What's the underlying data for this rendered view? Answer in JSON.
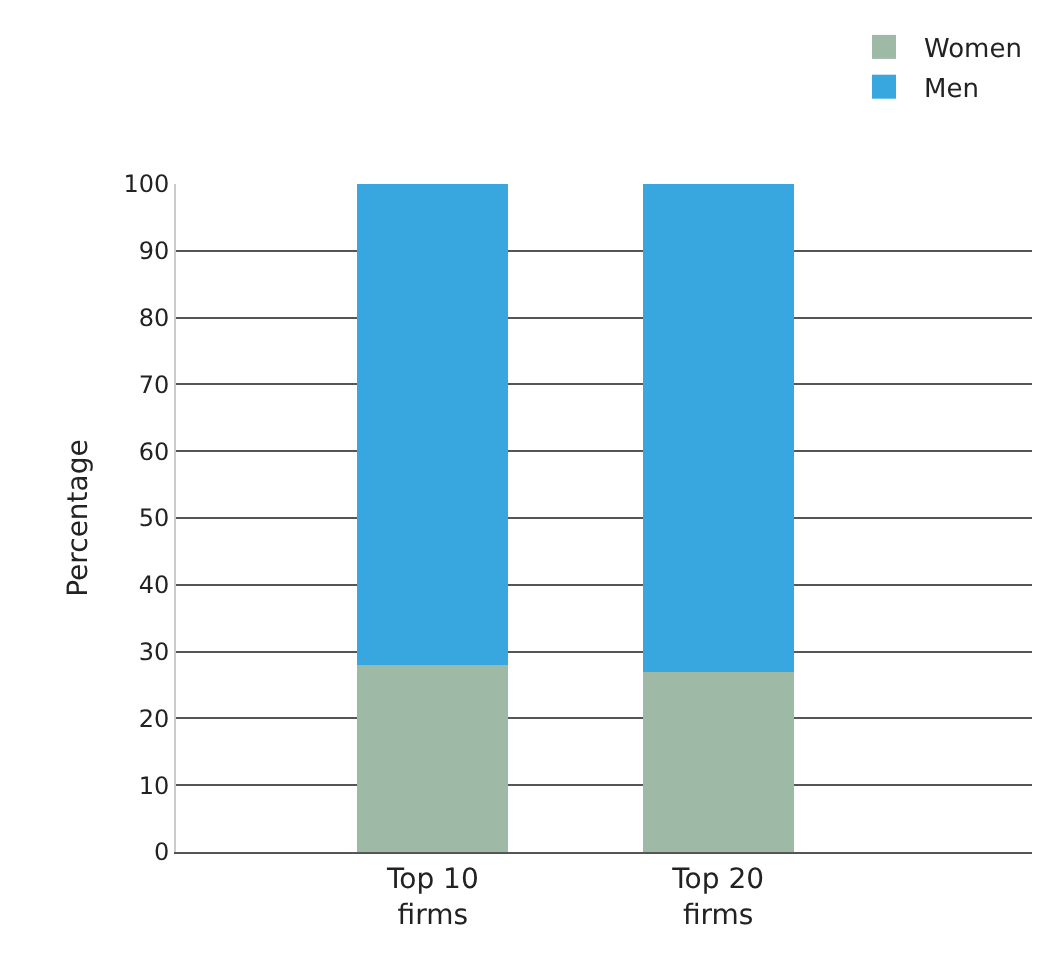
{
  "chart_data": {
    "type": "bar",
    "stacked": true,
    "ylabel": "Percentage",
    "categories": [
      "Top 10 firms",
      "Top 20 firms"
    ],
    "series": [
      {
        "name": "Women",
        "color": "#9fb9a7",
        "values": [
          28,
          27
        ]
      },
      {
        "name": "Men",
        "color": "#38a7e0",
        "values": [
          72,
          73
        ]
      }
    ],
    "ylim": [
      0,
      100
    ],
    "yticks": [
      0,
      10,
      20,
      30,
      40,
      50,
      60,
      70,
      80,
      90,
      100
    ],
    "grid": "y",
    "legend": "top right"
  }
}
